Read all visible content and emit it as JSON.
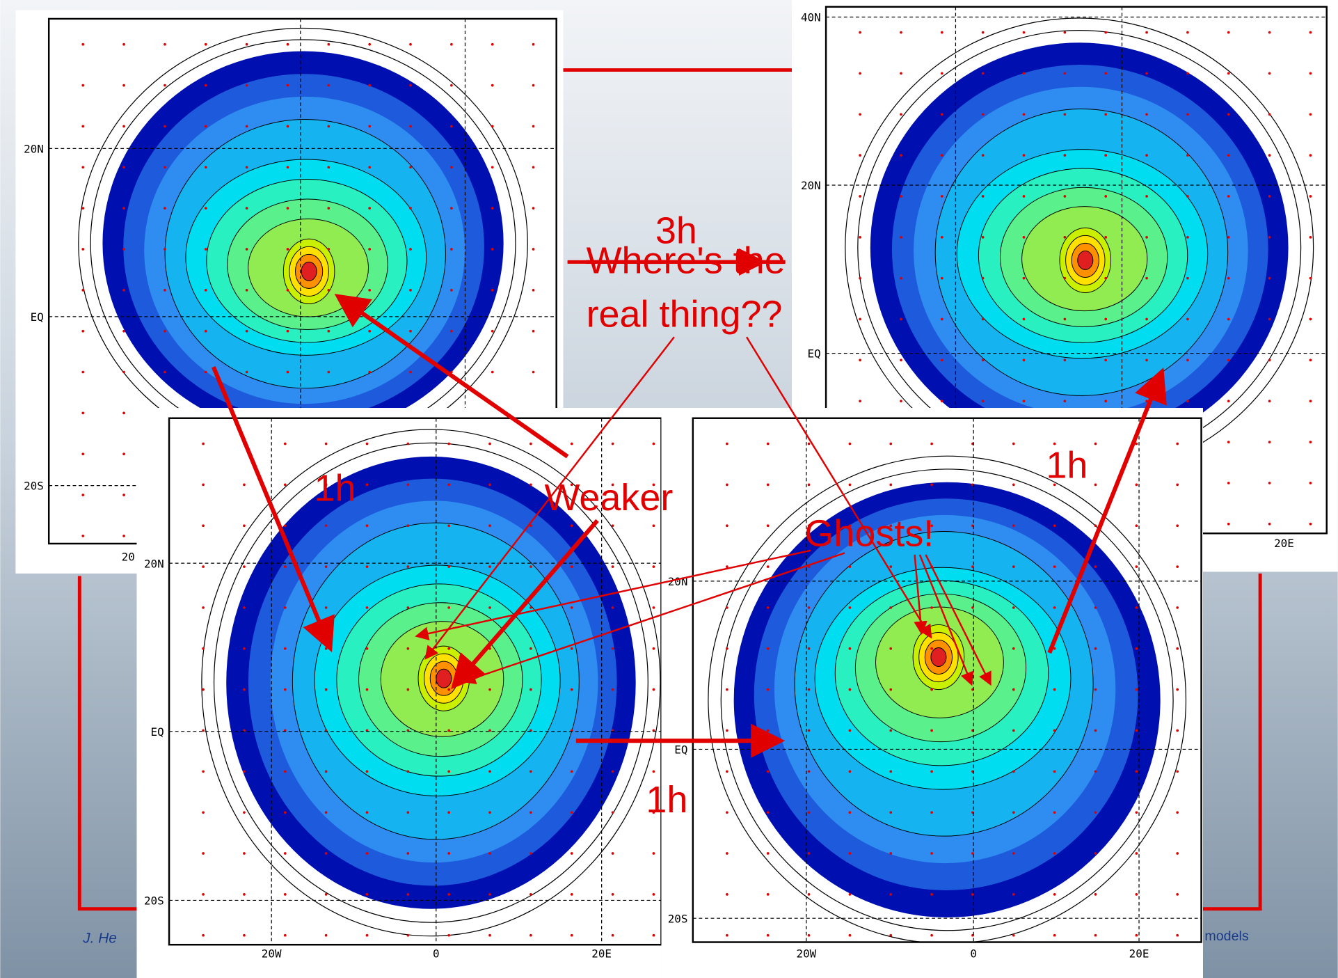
{
  "panels": [
    {
      "lat_labels": [
        "20N",
        "EQ",
        "20S"
      ],
      "lon_labels": [
        "20"
      ]
    },
    {
      "lat_labels": [
        "40N",
        "20N",
        "EQ"
      ],
      "lon_labels": [
        "20E"
      ]
    },
    {
      "lat_labels": [
        "20N",
        "EQ",
        "20S"
      ],
      "lon_labels": [
        "20W",
        "0",
        "20E"
      ]
    },
    {
      "lat_labels": [
        "20N",
        "EQ",
        "20S"
      ],
      "lon_labels": [
        "20W",
        "0",
        "20E"
      ]
    }
  ],
  "annotations": {
    "time_3h": "3h",
    "question_line1": "Where's the",
    "question_line2": "real thing??",
    "weaker": "Weaker",
    "time_1h_left": "1h",
    "time_1h_right": "1h",
    "time_1h_bottom": "1h",
    "ghosts": "Ghosts!"
  },
  "footer": {
    "author": "J. He",
    "title_end": "models"
  }
}
